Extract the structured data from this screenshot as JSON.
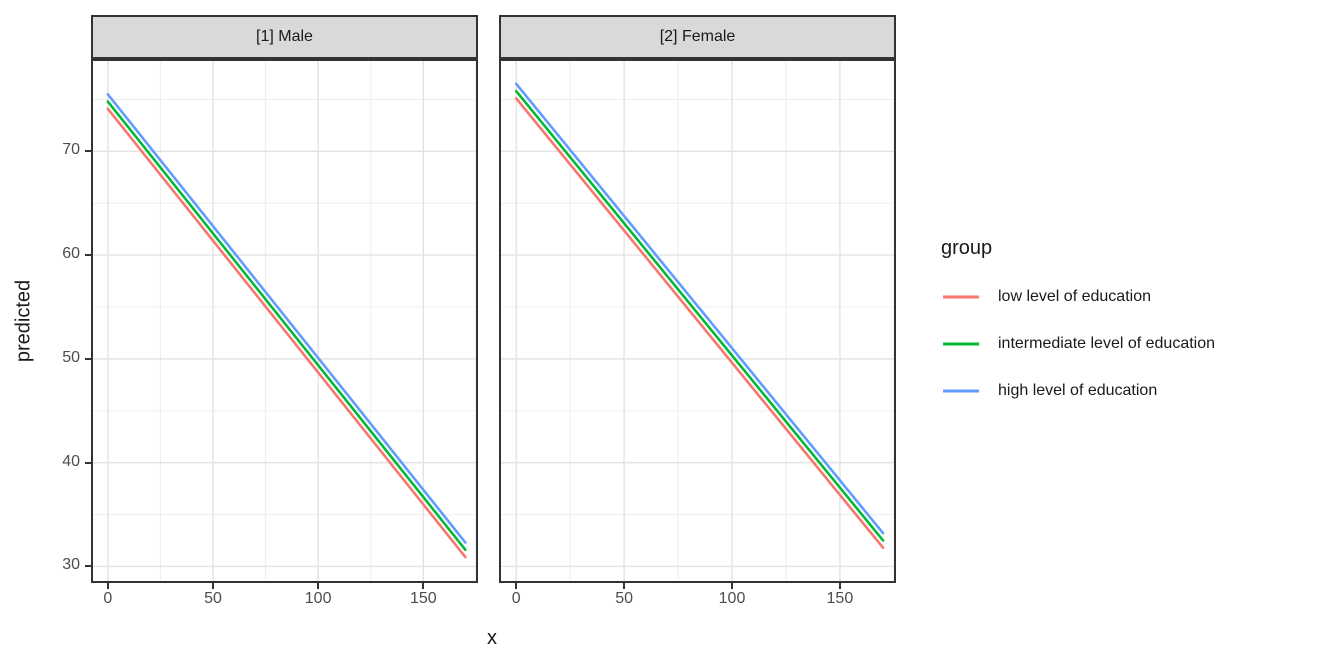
{
  "chart_data": {
    "type": "line",
    "title": "",
    "xlabel": "x",
    "ylabel": "predicted",
    "xlim": [
      -8,
      176
    ],
    "ylim": [
      28.4,
      78.9
    ],
    "x_ticks": [
      0,
      50,
      100,
      150
    ],
    "y_ticks": [
      30,
      40,
      50,
      60,
      70
    ],
    "x_minor_ticks": [
      25,
      75,
      125,
      175
    ],
    "y_minor_ticks": [
      35,
      45,
      55,
      65,
      75
    ],
    "grid": "major+minor",
    "legend_position": "right",
    "facets": [
      {
        "label": "[1] Male",
        "series": [
          {
            "name": "low level of education",
            "color": "#F8766D",
            "x": [
              0,
              170
            ],
            "y": [
              74.1,
              30.9
            ]
          },
          {
            "name": "intermediate level of education",
            "color": "#00BA38",
            "x": [
              0,
              170
            ],
            "y": [
              74.8,
              31.6
            ]
          },
          {
            "name": "high level of education",
            "color": "#619CFF",
            "x": [
              0,
              170
            ],
            "y": [
              75.5,
              32.3
            ]
          }
        ]
      },
      {
        "label": "[2] Female",
        "series": [
          {
            "name": "low level of education",
            "color": "#F8766D",
            "x": [
              0,
              170
            ],
            "y": [
              75.1,
              31.8
            ]
          },
          {
            "name": "intermediate level of education",
            "color": "#00BA38",
            "x": [
              0,
              170
            ],
            "y": [
              75.8,
              32.5
            ]
          },
          {
            "name": "high level of education",
            "color": "#619CFF",
            "x": [
              0,
              170
            ],
            "y": [
              76.5,
              33.2
            ]
          }
        ]
      }
    ],
    "legend": {
      "title": "group",
      "items": [
        {
          "label": "low level of education",
          "color": "#F8766D"
        },
        {
          "label": "intermediate level of education",
          "color": "#00BA38"
        },
        {
          "label": "high level of education",
          "color": "#619CFF"
        }
      ]
    }
  },
  "theme": {
    "panel_bg": "#ffffff",
    "strip_bg": "#d9d9d9",
    "strip_border": "#333333",
    "panel_border": "#333333",
    "grid_major": "#e3e3e3",
    "grid_minor": "#efefef",
    "tick_color": "#333333",
    "tick_label_color": "#4d4d4d",
    "text_color": "#1a1a1a",
    "line_width": 2.6
  }
}
